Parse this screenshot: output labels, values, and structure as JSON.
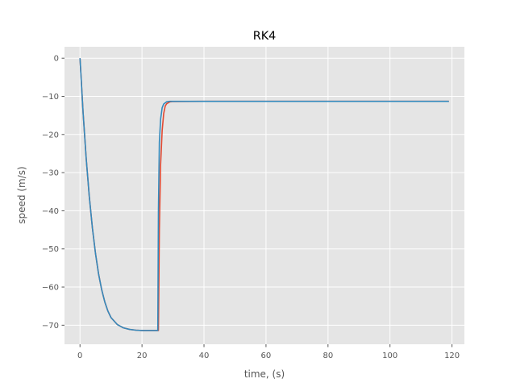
{
  "chart_data": {
    "type": "line",
    "title": "RK4",
    "xlabel": "time, (s)",
    "ylabel": "speed (m/s)",
    "xlim": [
      -5,
      124
    ],
    "ylim": [
      -75,
      3
    ],
    "xticks": [
      0,
      20,
      40,
      60,
      80,
      100,
      120
    ],
    "yticks": [
      0,
      -10,
      -20,
      -30,
      -40,
      -50,
      -60,
      -70
    ],
    "grid": true,
    "background": "#e5e5e5",
    "grid_color": "#ffffff",
    "series": [
      {
        "color": "#e24a33",
        "x": [
          0,
          1,
          2,
          3,
          4,
          5,
          6,
          7,
          8,
          9,
          10,
          12,
          14,
          16,
          18,
          20,
          22,
          24,
          25.3,
          25.6,
          26,
          26.5,
          27,
          27.5,
          28,
          29,
          30,
          40,
          60,
          80,
          100,
          119
        ],
        "y": [
          0,
          -14.3,
          -26.3,
          -36.3,
          -44.5,
          -51.2,
          -56.6,
          -60.7,
          -63.9,
          -66.3,
          -68.0,
          -69.8,
          -70.7,
          -71.1,
          -71.3,
          -71.4,
          -71.4,
          -71.4,
          -71.4,
          -45,
          -28,
          -19,
          -14.5,
          -12.5,
          -11.9,
          -11.45,
          -11.35,
          -11.3,
          -11.3,
          -11.3,
          -11.3,
          -11.3
        ]
      },
      {
        "color": "#348abd",
        "x": [
          0,
          1,
          2,
          3,
          4,
          5,
          6,
          7,
          8,
          9,
          10,
          12,
          14,
          16,
          18,
          20,
          22,
          24,
          25.1,
          25.3,
          25.6,
          26,
          26.5,
          27,
          28,
          29,
          30,
          40,
          60,
          80,
          100,
          119
        ],
        "y": [
          0,
          -14.3,
          -26.3,
          -36.3,
          -44.5,
          -51.2,
          -56.6,
          -60.7,
          -63.9,
          -66.3,
          -68.0,
          -69.8,
          -70.7,
          -71.1,
          -71.3,
          -71.4,
          -71.4,
          -71.4,
          -71.4,
          -40,
          -22,
          -16,
          -13,
          -12,
          -11.4,
          -11.3,
          -11.3,
          -11.3,
          -11.3,
          -11.3,
          -11.3,
          -11.3
        ]
      }
    ]
  }
}
